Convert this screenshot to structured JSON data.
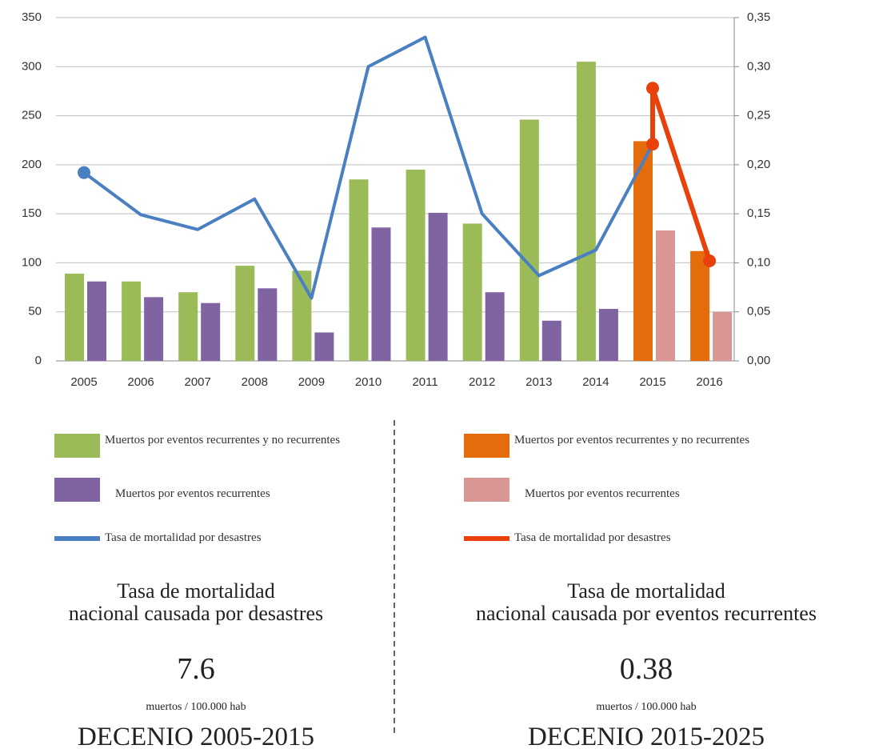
{
  "chart_data": {
    "type": "bar",
    "categories": [
      "2005",
      "2006",
      "2007",
      "2008",
      "2009",
      "2010",
      "2011",
      "2012",
      "2013",
      "2014",
      "2015",
      "2016"
    ],
    "ylim": [
      0,
      350
    ],
    "yticks": [
      0,
      50,
      100,
      150,
      200,
      250,
      300,
      350
    ],
    "y2lim": [
      0,
      0.35
    ],
    "y2ticks": [
      {
        "value": 0,
        "label": "0,00"
      },
      {
        "value": 0.05,
        "label": "0,05"
      },
      {
        "value": 0.1,
        "label": "0,10"
      },
      {
        "value": 0.15,
        "label": "0,15"
      },
      {
        "value": 0.2,
        "label": "0,20"
      },
      {
        "value": 0.25,
        "label": "0,25"
      },
      {
        "value": 0.3,
        "label": "0,30"
      },
      {
        "value": 0.35,
        "label": "0,35"
      }
    ],
    "grid": true,
    "series": [
      {
        "name": "Muertos por eventos recurrentes y no recurrentes",
        "type": "bar",
        "color": "#9bbb59",
        "values": [
          89,
          81,
          70,
          97,
          92,
          185,
          195,
          140,
          246,
          305,
          null,
          null
        ]
      },
      {
        "name": "Muertos por eventos recurrentes y no recurrentes",
        "type": "bar",
        "color": "#e46c0a",
        "values": [
          null,
          null,
          null,
          null,
          null,
          null,
          null,
          null,
          null,
          null,
          224,
          112
        ]
      },
      {
        "name": "Muertos por eventos recurrentes",
        "type": "bar",
        "color": "#8064a2",
        "values": [
          81,
          65,
          59,
          74,
          29,
          136,
          151,
          70,
          41,
          53,
          null,
          null
        ]
      },
      {
        "name": "Muertos por eventos recurrentes",
        "type": "bar",
        "color": "#d99694",
        "values": [
          null,
          null,
          null,
          null,
          null,
          null,
          null,
          null,
          null,
          null,
          133,
          50
        ]
      },
      {
        "name": "Tasa de mortalidad  por desastres",
        "type": "line",
        "axis": "y2",
        "color": "#4a7fc1",
        "values": [
          0.192,
          0.149,
          0.134,
          0.165,
          0.064,
          0.3,
          0.33,
          0.15,
          0.087,
          0.113,
          0.221,
          null
        ]
      },
      {
        "name": "Tasa de mortalidad  por desastres",
        "type": "line",
        "axis": "y2",
        "color": "#e8410c",
        "values": [
          null,
          null,
          null,
          null,
          null,
          null,
          null,
          null,
          null,
          null,
          0.278,
          0.102
        ]
      }
    ]
  },
  "panels": [
    {
      "heading": [
        "Tasa de mortalidad",
        "nacional causada por desastres"
      ],
      "value": 7.6,
      "unit": "muertos / 100.000 hab",
      "period": "DECENIO 2005-2015"
    },
    {
      "heading": [
        "Tasa de mortalidad",
        "nacional causada por eventos recurrentes"
      ],
      "value": 0.38,
      "unit": "muertos / 100.000 hab",
      "period": "DECENIO 2015-2025"
    }
  ]
}
